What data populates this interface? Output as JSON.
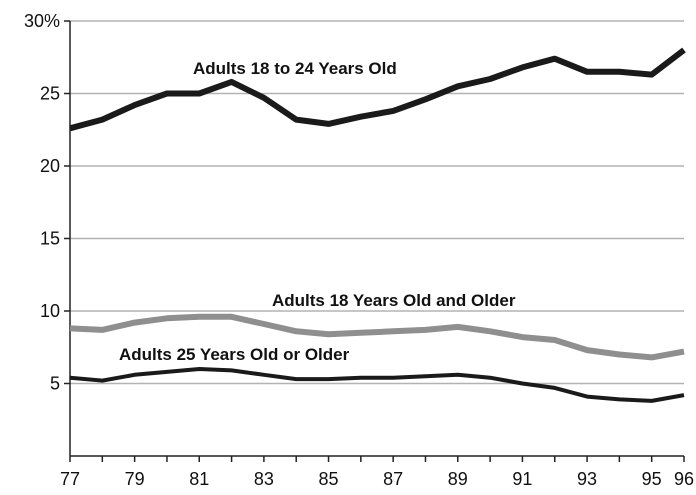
{
  "chart_data": {
    "type": "line",
    "title": "",
    "xlabel": "",
    "ylabel": "",
    "x": [
      1977,
      1978,
      1979,
      1980,
      1981,
      1982,
      1983,
      1984,
      1985,
      1986,
      1987,
      1988,
      1989,
      1990,
      1991,
      1992,
      1993,
      1994,
      1995,
      1996
    ],
    "x_tick_values": [
      1977,
      1979,
      1981,
      1983,
      1985,
      1987,
      1989,
      1991,
      1993,
      1995,
      1996
    ],
    "x_tick_labels": [
      "77",
      "79",
      "81",
      "83",
      "85",
      "87",
      "89",
      "91",
      "93",
      "95",
      "96"
    ],
    "xlim": [
      1977,
      1996
    ],
    "ylim": [
      0,
      30
    ],
    "y_tick_values": [
      5,
      10,
      15,
      20,
      25,
      30
    ],
    "y_tick_labels": [
      "5",
      "10",
      "15",
      "20",
      "25",
      "30%"
    ],
    "grid": "horizontal",
    "series": [
      {
        "name": "Adults 18 to 24 Years Old",
        "color": "#1a1a1a",
        "values": [
          22.6,
          23.2,
          24.2,
          25.0,
          25.0,
          25.8,
          24.7,
          23.2,
          22.9,
          23.4,
          23.8,
          24.6,
          25.5,
          26.0,
          26.8,
          27.4,
          26.5,
          26.5,
          26.3,
          28.0
        ]
      },
      {
        "name": "Adults 18 Years Old and Older",
        "color": "#8f8f8f",
        "values": [
          8.8,
          8.7,
          9.2,
          9.5,
          9.6,
          9.6,
          9.1,
          8.6,
          8.4,
          8.5,
          8.6,
          8.7,
          8.9,
          8.6,
          8.2,
          8.0,
          7.3,
          7.0,
          6.8,
          7.2
        ]
      },
      {
        "name": "Adults 25 Years Old or Older",
        "color": "#1a1a1a",
        "values": [
          5.4,
          5.2,
          5.6,
          5.8,
          6.0,
          5.9,
          5.6,
          5.3,
          5.3,
          5.4,
          5.4,
          5.5,
          5.6,
          5.4,
          5.0,
          4.7,
          4.1,
          3.9,
          3.8,
          4.2
        ]
      }
    ]
  }
}
